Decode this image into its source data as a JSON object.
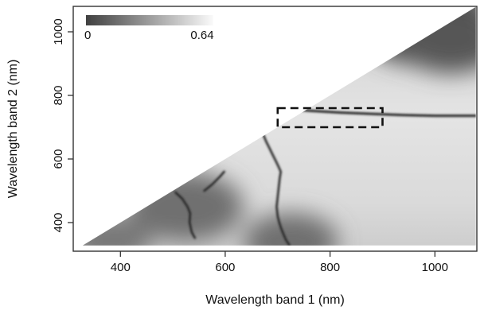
{
  "chart_data": {
    "type": "heatmap",
    "title": "",
    "xlabel": "Wavelength band 1 (nm)",
    "ylabel": "Wavelength band 2 (nm)",
    "xlim": [
      310,
      1080
    ],
    "ylim": [
      310,
      1080
    ],
    "x_ticks": [
      400,
      600,
      800,
      1000
    ],
    "y_ticks": [
      400,
      600,
      800,
      1000
    ],
    "grid": false,
    "legend_position": "top-left",
    "colorbar": {
      "min_label": "0",
      "max_label": "0.64",
      "min_value": 0,
      "max_value": 0.64,
      "min_color": "#404040",
      "max_color": "#fafafa"
    },
    "mask": "lower-triangle (band 2 > band 1 only)",
    "highlight_box": {
      "x_range": [
        700,
        900
      ],
      "y_range": [
        700,
        760
      ],
      "style": "dashed"
    },
    "dark_ridges": [
      {
        "x": [
          700,
          760,
          820,
          880,
          940,
          1000,
          1060,
          1078
        ],
        "y": [
          760,
          752,
          746,
          742,
          738,
          736,
          736,
          736
        ]
      },
      {
        "x": [
          673,
          678,
          684,
          690,
          696,
          701,
          706,
          704,
          702,
          700,
          698,
          700,
          703,
          707,
          712,
          716,
          722
        ],
        "y": [
          675,
          655,
          635,
          615,
          595,
          578,
          560,
          540,
          510,
          480,
          450,
          420,
          400,
          380,
          360,
          345,
          330
        ]
      },
      {
        "x": [
          533,
          532,
          536,
          542
        ],
        "y": [
          430,
          400,
          370,
          352
        ]
      },
      {
        "x": [
          505,
          518,
          528,
          533
        ],
        "y": [
          495,
          475,
          450,
          430
        ]
      },
      {
        "x": [
          560,
          575,
          590,
          598
        ],
        "y": [
          500,
          520,
          545,
          560
        ]
      }
    ],
    "dark_regions": [
      {
        "x": 980,
        "y": 1025,
        "size": 130,
        "level": 0.05
      },
      {
        "x": 1030,
        "y": 970,
        "size": 100,
        "level": 0.12
      },
      {
        "x": 525,
        "y": 450,
        "size": 110,
        "level": 0.25
      },
      {
        "x": 725,
        "y": 340,
        "size": 90,
        "level": 0.25
      },
      {
        "x": 380,
        "y": 345,
        "size": 80,
        "level": 0.3
      }
    ]
  }
}
